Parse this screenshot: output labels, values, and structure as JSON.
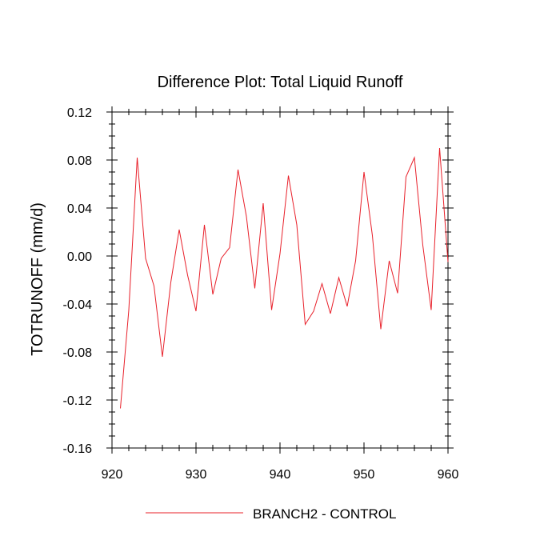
{
  "chart_data": {
    "type": "line",
    "title": "Difference Plot: Total Liquid Runoff",
    "xlabel": "",
    "ylabel": "TOTRUNOFF  (mm/d)",
    "xlim": [
      920,
      960
    ],
    "ylim": [
      -0.16,
      0.12
    ],
    "x_ticks": [
      920,
      930,
      940,
      950,
      960
    ],
    "x_tick_labels": [
      "920",
      "930",
      "940",
      "950",
      "960"
    ],
    "y_ticks": [
      -0.16,
      -0.12,
      -0.08,
      -0.04,
      0.0,
      0.04,
      0.08,
      0.12
    ],
    "y_tick_labels": [
      "-0.16",
      "-0.12",
      "-0.08",
      "-0.04",
      "0.00",
      "0.04",
      "0.08",
      "0.12"
    ],
    "grid": false,
    "legend_position": "bottom",
    "series": [
      {
        "name": "BRANCH2 - CONTROL",
        "color": "#e8202a",
        "x": [
          921,
          922,
          923,
          924,
          925,
          926,
          927,
          928,
          929,
          930,
          931,
          932,
          933,
          934,
          935,
          936,
          937,
          938,
          939,
          940,
          941,
          942,
          943,
          944,
          945,
          946,
          947,
          948,
          949,
          950,
          951,
          952,
          953,
          954,
          955,
          956,
          957,
          958,
          959,
          960
        ],
        "y": [
          -0.127,
          -0.045,
          0.082,
          -0.002,
          -0.025,
          -0.084,
          -0.022,
          0.022,
          -0.016,
          -0.046,
          0.026,
          -0.032,
          -0.002,
          0.007,
          0.072,
          0.033,
          -0.027,
          0.044,
          -0.045,
          0.002,
          0.067,
          0.026,
          -0.057,
          -0.046,
          -0.023,
          -0.048,
          -0.018,
          -0.042,
          -0.004,
          0.07,
          0.017,
          -0.061,
          -0.004,
          -0.031,
          0.066,
          0.082,
          0.009,
          -0.045,
          0.09,
          -0.005
        ]
      }
    ]
  }
}
